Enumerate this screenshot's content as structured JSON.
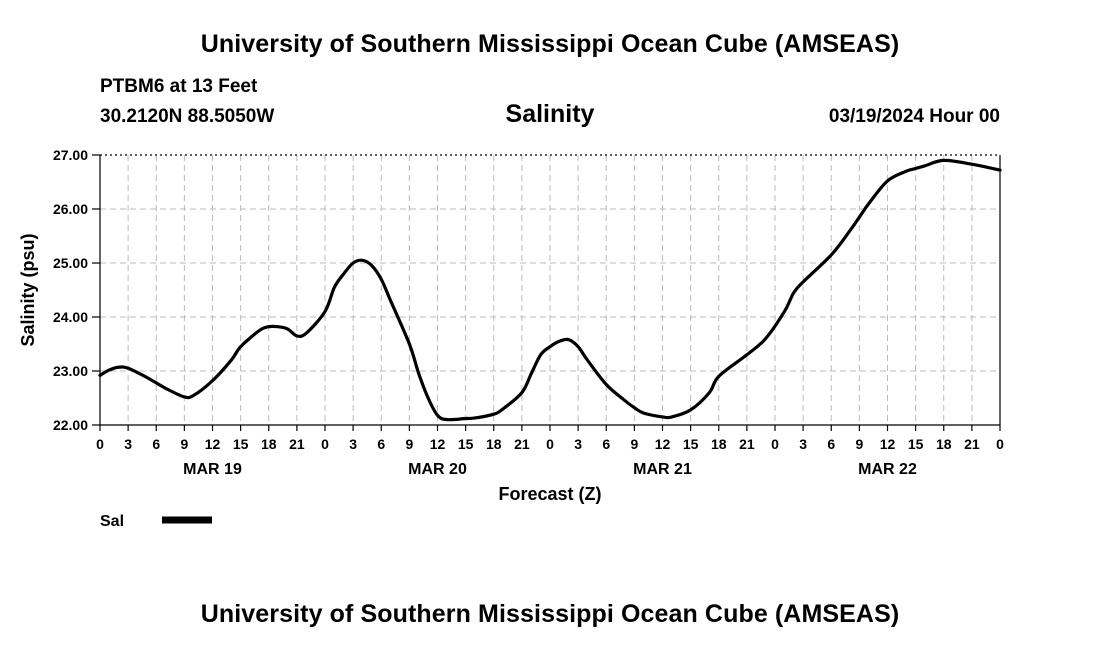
{
  "header": {
    "title": "University of Southern Mississippi Ocean Cube (AMSEAS)",
    "station": "PTBM6 at 13 Feet",
    "coordinates": "30.2120N  88.5050W",
    "chart_title": "Salinity",
    "date": "03/19/2024 Hour 00"
  },
  "footer": {
    "title": "University of Southern Mississippi Ocean Cube (AMSEAS)"
  },
  "colors": {
    "line": "#000000",
    "grid": "#bbbbbb",
    "background": "#ffffff"
  },
  "chart_data": {
    "type": "line",
    "title": "Salinity",
    "xlabel": "Forecast (Z)",
    "ylabel": "Salinity (psu)",
    "xlim": [
      0,
      96
    ],
    "ylim": [
      22.0,
      27.0
    ],
    "grid": true,
    "y_ticks": [
      22.0,
      23.0,
      24.0,
      25.0,
      26.0,
      27.0
    ],
    "y_tick_labels": [
      "22.00",
      "23.00",
      "24.00",
      "25.00",
      "26.00",
      "27.00"
    ],
    "x_tick_hours": [
      0,
      3,
      6,
      9,
      12,
      15,
      18,
      21,
      24,
      27,
      30,
      33,
      36,
      39,
      42,
      45,
      48,
      51,
      54,
      57,
      60,
      63,
      66,
      69,
      72,
      75,
      78,
      81,
      84,
      87,
      90,
      93,
      96
    ],
    "x_tick_labels": [
      "0",
      "3",
      "6",
      "9",
      "12",
      "15",
      "18",
      "21",
      "0",
      "3",
      "6",
      "9",
      "12",
      "15",
      "18",
      "21",
      "0",
      "3",
      "6",
      "9",
      "12",
      "15",
      "18",
      "21",
      "0",
      "3",
      "6",
      "9",
      "12",
      "15",
      "18",
      "21",
      "0"
    ],
    "day_labels": [
      {
        "label": "MAR 19",
        "hour": 12
      },
      {
        "label": "MAR 20",
        "hour": 36
      },
      {
        "label": "MAR 21",
        "hour": 60
      },
      {
        "label": "MAR 22",
        "hour": 84
      }
    ],
    "legend": {
      "position": "bottom-left",
      "entries": [
        "Sal"
      ]
    },
    "series": [
      {
        "name": "Sal",
        "x": [
          0,
          1,
          2,
          3,
          5,
          7,
          9,
          10,
          12,
          14,
          15,
          17,
          18,
          19,
          20,
          21,
          22,
          24,
          25,
          26,
          27,
          28,
          29,
          30,
          31,
          33,
          34,
          35,
          36,
          37,
          39,
          40,
          42,
          43,
          45,
          46,
          47,
          48,
          49,
          50,
          51,
          52,
          54,
          56,
          57,
          58,
          60,
          61,
          63,
          65,
          66,
          69,
          71,
          73,
          74,
          75,
          78,
          80,
          81,
          82,
          84,
          86,
          87,
          88,
          90,
          93,
          96
        ],
        "values": [
          22.92,
          23.02,
          23.07,
          23.05,
          22.88,
          22.68,
          22.52,
          22.55,
          22.82,
          23.2,
          23.45,
          23.75,
          23.82,
          23.82,
          23.78,
          23.65,
          23.7,
          24.1,
          24.55,
          24.8,
          25.0,
          25.05,
          24.95,
          24.7,
          24.3,
          23.5,
          22.95,
          22.5,
          22.18,
          22.1,
          22.12,
          22.13,
          22.2,
          22.3,
          22.6,
          22.95,
          23.3,
          23.45,
          23.55,
          23.58,
          23.45,
          23.2,
          22.75,
          22.45,
          22.32,
          22.22,
          22.15,
          22.15,
          22.28,
          22.6,
          22.9,
          23.3,
          23.6,
          24.1,
          24.45,
          24.65,
          25.15,
          25.6,
          25.85,
          26.1,
          26.52,
          26.7,
          26.75,
          26.8,
          26.9,
          26.83,
          26.72
        ]
      }
    ]
  }
}
